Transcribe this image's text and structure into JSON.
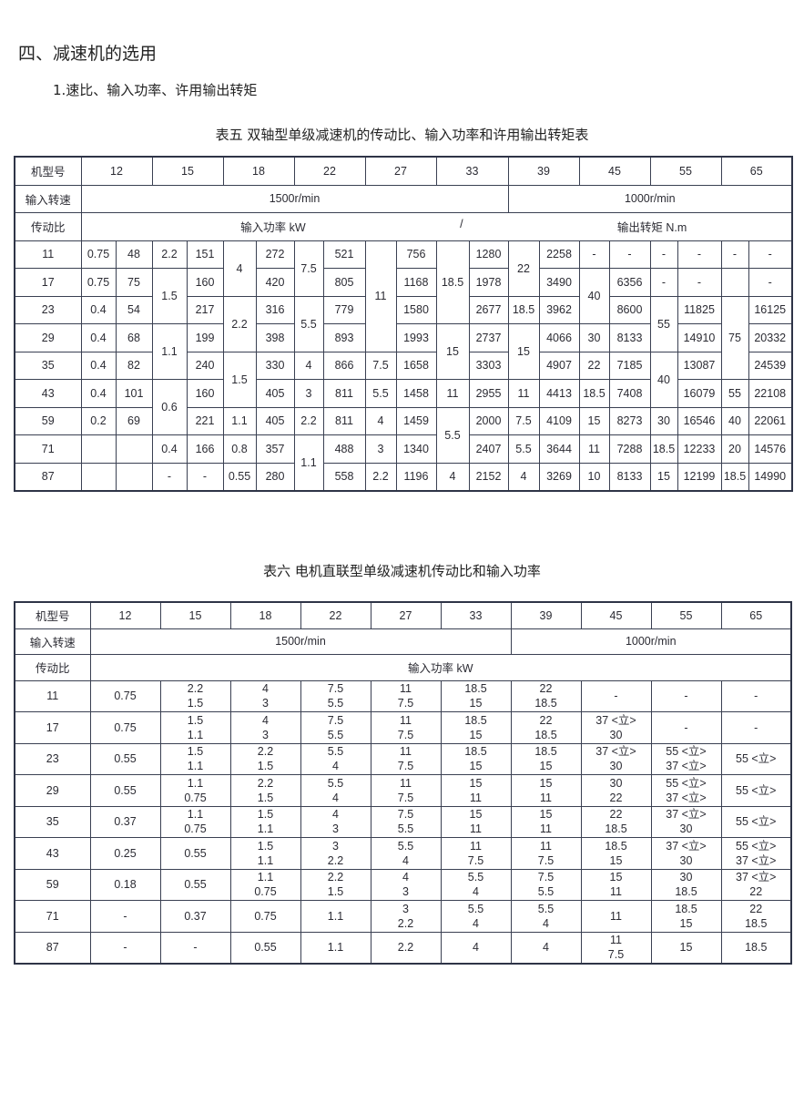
{
  "section_title": "四、减速机的选用",
  "subsection_title": "1.速比、输入功率、许用输出转矩",
  "table5": {
    "caption": "表五  双轴型单级减速机的传动比、输入功率和许用输出转矩表",
    "model_label": "机型号",
    "models": [
      "12",
      "15",
      "18",
      "22",
      "27",
      "33",
      "39",
      "45",
      "55",
      "65"
    ],
    "speed_label": "输入转速",
    "speed_1500": "1500r/min",
    "speed_1000": "1000r/min",
    "ratio_label": "传动比",
    "power_label": "输入功率 kW",
    "separator": "/",
    "torque_label": "输出转矩 N.m",
    "rows": [
      [
        "11",
        "0.75",
        "48",
        "2.2",
        "151",
        {
          "t": "4",
          "rs": 2
        },
        "272",
        {
          "t": "7.5",
          "rs": 2
        },
        "521",
        {
          "t": "11",
          "rs": 4
        },
        "756",
        {
          "t": "18.5",
          "rs": 3
        },
        "1280",
        {
          "t": "22",
          "rs": 2
        },
        "2258",
        "-",
        "-",
        "-",
        "-",
        "-",
        "-"
      ],
      [
        "17",
        "0.75",
        "75",
        {
          "t": "1.5",
          "rs": 2
        },
        "160",
        "420",
        "805",
        "1168",
        "1978",
        "3490",
        {
          "t": "40",
          "rs": 2
        },
        "6356",
        "-",
        "-",
        "",
        "-"
      ],
      [
        "23",
        "0.4",
        "54",
        "217",
        {
          "t": "2.2",
          "rs": 2
        },
        "316",
        {
          "t": "5.5",
          "rs": 2
        },
        "779",
        "1580",
        "2677",
        "18.5",
        "3962",
        "8600",
        {
          "t": "55",
          "rs": 2
        },
        "11825",
        {
          "t": "75",
          "rs": 3
        },
        "16125"
      ],
      [
        "29",
        "0.4",
        "68",
        {
          "t": "1.1",
          "rs": 2
        },
        "199",
        "398",
        "893",
        "1993",
        {
          "t": "15",
          "rs": 2
        },
        "2737",
        {
          "t": "15",
          "rs": 2
        },
        "4066",
        "30",
        "8133",
        "14910",
        "20332"
      ],
      [
        "35",
        "0.4",
        "82",
        "240",
        {
          "t": "1.5",
          "rs": 2
        },
        "330",
        "4",
        "866",
        "7.5",
        "1658",
        "3303",
        "4907",
        "22",
        "7185",
        {
          "t": "40",
          "rs": 2
        },
        "13087",
        "24539"
      ],
      [
        "43",
        "0.4",
        "101",
        {
          "t": "0.6",
          "rs": 2
        },
        "160",
        "405",
        "3",
        "811",
        "5.5",
        "1458",
        "11",
        "2955",
        "11",
        "4413",
        "18.5",
        "7408",
        "16079",
        "55",
        "22108"
      ],
      [
        "59",
        "0.2",
        "69",
        "221",
        "1.1",
        "405",
        "2.2",
        "811",
        "4",
        "1459",
        {
          "t": "5.5",
          "rs": 2
        },
        "2000",
        "7.5",
        "4109",
        "15",
        "8273",
        "30",
        "16546",
        "40",
        "22061"
      ],
      [
        "71",
        "",
        "",
        "0.4",
        "166",
        "0.8",
        "357",
        {
          "t": "1.1",
          "rs": 2
        },
        "488",
        "3",
        "1340",
        "2407",
        "5.5",
        "3644",
        "11",
        "7288",
        "18.5",
        "12233",
        "20",
        "14576"
      ],
      [
        "87",
        "",
        "",
        "-",
        "-",
        "0.55",
        "280",
        "558",
        "2.2",
        "1196",
        "4",
        "2152",
        "4",
        "3269",
        "10",
        "8133",
        "15",
        "12199",
        "18.5",
        "14990"
      ]
    ]
  },
  "table6": {
    "caption": "表六  电机直联型单级减速机传动比和输入功率",
    "model_label": "机型号",
    "models": [
      "12",
      "15",
      "18",
      "22",
      "27",
      "33",
      "39",
      "45",
      "55",
      "65"
    ],
    "speed_label": "输入转速",
    "speed_1500": "1500r/min",
    "speed_1000": "1000r/min",
    "ratio_label": "传动比",
    "power_label": "输入功率 kW",
    "rows": [
      [
        "11",
        "0.75",
        "2.2\n1.5",
        "4\n3",
        "7.5\n5.5",
        "11\n7.5",
        "18.5\n15",
        "22\n18.5",
        "-",
        "-",
        "-"
      ],
      [
        "17",
        "0.75",
        "1.5\n1.1",
        "4\n3",
        "7.5\n5.5",
        "11\n7.5",
        "18.5\n15",
        "22\n18.5",
        "37 <立>\n30",
        "-",
        "-"
      ],
      [
        "23",
        "0.55",
        "1.5\n1.1",
        "2.2\n1.5",
        "5.5\n4",
        "11\n7.5",
        "18.5\n15",
        "18.5\n15",
        "37 <立>\n30",
        "55 <立>\n37 <立>",
        "55 <立>"
      ],
      [
        "29",
        "0.55",
        "1.1\n0.75",
        "2.2\n1.5",
        "5.5\n4",
        "11\n7.5",
        "15\n11",
        "15\n11",
        "30\n22",
        "55 <立>\n37 <立>",
        "55 <立>"
      ],
      [
        "35",
        "0.37",
        "1.1\n0.75",
        "1.5\n1.1",
        "4\n3",
        "7.5\n5.5",
        "15\n11",
        "15\n11",
        "22\n18.5",
        "37 <立>\n30",
        "55 <立>"
      ],
      [
        "43",
        "0.25",
        "0.55",
        "1.5\n1.1",
        "3\n2.2",
        "5.5\n4",
        "11\n7.5",
        "11\n7.5",
        "18.5\n15",
        "37 <立>\n30",
        "55 <立>\n37 <立>"
      ],
      [
        "59",
        "0.18",
        "0.55",
        "1.1\n0.75",
        "2.2\n1.5",
        "4\n3",
        "5.5\n4",
        "7.5\n5.5",
        "15\n11",
        "30\n18.5",
        "37 <立>\n22"
      ],
      [
        "71",
        "-",
        "0.37",
        "0.75",
        "1.1",
        "3\n2.2",
        "5.5\n4",
        "5.5\n4",
        "11",
        "18.5\n15",
        "22\n18.5"
      ],
      [
        "87",
        "-",
        "-",
        "0.55",
        "1.1",
        "2.2",
        "4",
        "4",
        "11\n7.5",
        "15",
        "18.5"
      ]
    ]
  }
}
